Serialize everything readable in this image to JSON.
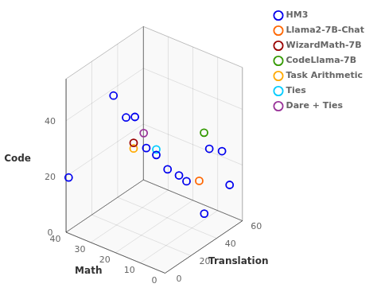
{
  "chart_data": {
    "type": "scatter3d",
    "xlabel": "Math",
    "ylabel": "Translation",
    "zlabel": "Code",
    "xlim": [
      40,
      0
    ],
    "ylim": [
      0,
      60
    ],
    "zlim": [
      0,
      55
    ],
    "xticks": [
      0,
      10,
      20,
      30,
      40
    ],
    "yticks": [
      0,
      20,
      40,
      60
    ],
    "zticks": [
      0,
      20,
      40
    ],
    "grid": true,
    "legend": "upper right",
    "marker": "circle",
    "series": [
      {
        "name": "HM3",
        "color": "#0000EE",
        "values": [
          [
            40,
            2,
            19
          ],
          [
            25,
            8,
            52
          ],
          [
            22,
            12,
            44
          ],
          [
            20,
            15,
            44
          ],
          [
            18,
            20,
            32
          ],
          [
            15,
            22,
            30
          ],
          [
            12,
            25,
            25
          ],
          [
            10,
            30,
            22
          ],
          [
            8,
            32,
            20
          ],
          [
            5,
            40,
            7
          ],
          [
            4,
            42,
            30
          ],
          [
            2,
            48,
            28
          ],
          [
            1,
            52,
            15
          ]
        ]
      },
      {
        "name": "Llama2-7B-Chat",
        "color": "#FF6600",
        "values": [
          [
            6,
            38,
            19
          ]
        ]
      },
      {
        "name": "WizardMath-7B",
        "color": "#990000",
        "values": [
          [
            20,
            14,
            35
          ]
        ]
      },
      {
        "name": "CodeLlama-7B",
        "color": "#339900",
        "values": [
          [
            3,
            36,
            38
          ]
        ]
      },
      {
        "name": "Task Arithmetic",
        "color": "#FFAA00",
        "values": [
          [
            20,
            14,
            33
          ]
        ]
      },
      {
        "name": "Ties",
        "color": "#00CCFF",
        "values": [
          [
            15,
            22,
            32
          ]
        ]
      },
      {
        "name": "Dare + Ties",
        "color": "#993399",
        "values": [
          [
            18,
            18,
            38
          ]
        ]
      }
    ]
  }
}
